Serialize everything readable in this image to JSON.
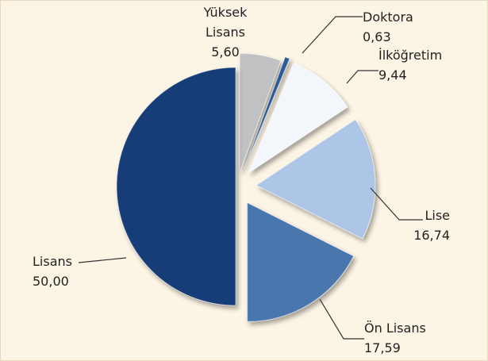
{
  "chart_data": {
    "type": "pie",
    "categories": [
      "Yüksek Lisans",
      "Doktora",
      "İlköğretim",
      "Lise",
      "Ön Lisans",
      "Lisans"
    ],
    "values": [
      5.6,
      0.63,
      9.44,
      16.74,
      17.59,
      50.0
    ],
    "value_labels": [
      "5,60",
      "0,63",
      "9,44",
      "16,74",
      "17,59",
      "50,00"
    ],
    "colors": [
      "#bfc1c2",
      "#2a5a9a",
      "#f3f6fb",
      "#adc5e6",
      "#4a77ad",
      "#173e77"
    ]
  }
}
